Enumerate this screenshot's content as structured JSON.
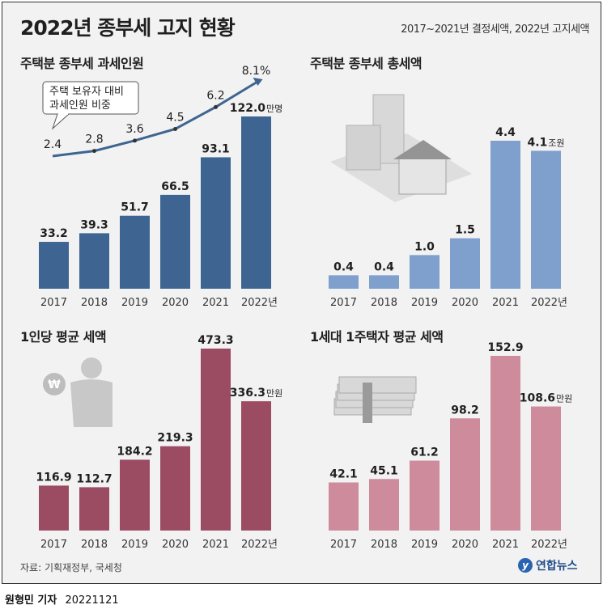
{
  "title": "2022년 종부세 고지 현황",
  "subtitle": "2017~2021년 결정세액, 2022년 고지세액",
  "source": "자료: 기획재정부, 국세청",
  "logo": "연합뉴스",
  "logo_mark": "y",
  "byline": {
    "name": "원형민 기자",
    "date": "20221121"
  },
  "colors": {
    "blue_dark": "#3e6591",
    "blue_light": "#7f9fcc",
    "wine": "#9b4c63",
    "pink": "#cd8b9c",
    "line": "#3e6591"
  },
  "chart_data": [
    {
      "type": "bar",
      "title": "주택분 종부세 과세인원",
      "categories": [
        "2017",
        "2018",
        "2019",
        "2020",
        "2021",
        "2022년"
      ],
      "values": [
        33.2,
        39.3,
        51.7,
        66.5,
        93.1,
        122.0
      ],
      "value_labels": [
        "33.2",
        "39.3",
        "51.7",
        "66.5",
        "93.1",
        "122.0"
      ],
      "unit": "만명",
      "ylim": [
        0,
        122
      ],
      "overlay_line": {
        "label": "주택 보유자 대비\n과세인원 비중",
        "values": [
          2.4,
          2.8,
          3.6,
          4.5,
          6.2,
          8.1
        ],
        "value_labels": [
          "2.4",
          "2.8",
          "3.6",
          "4.5",
          "6.2",
          "8.1%"
        ]
      }
    },
    {
      "type": "bar",
      "title": "주택분 종부세 총세액",
      "categories": [
        "2017",
        "2018",
        "2019",
        "2020",
        "2021",
        "2022년"
      ],
      "values": [
        0.4,
        0.4,
        1.0,
        1.5,
        4.4,
        4.1
      ],
      "value_labels": [
        "0.4",
        "0.4",
        "1.0",
        "1.5",
        "4.4",
        "4.1"
      ],
      "unit": "조원",
      "ylim": [
        0,
        4.4
      ]
    },
    {
      "type": "bar",
      "title": "1인당 평균 세액",
      "categories": [
        "2017",
        "2018",
        "2019",
        "2020",
        "2021",
        "2022년"
      ],
      "values": [
        116.9,
        112.7,
        184.2,
        219.3,
        473.3,
        336.3
      ],
      "value_labels": [
        "116.9",
        "112.7",
        "184.2",
        "219.3",
        "473.3",
        "336.3"
      ],
      "unit": "만원",
      "ylim": [
        0,
        473.3
      ]
    },
    {
      "type": "bar",
      "title": "1세대 1주택자 평균 세액",
      "categories": [
        "2017",
        "2018",
        "2019",
        "2020",
        "2021",
        "2022년"
      ],
      "values": [
        42.1,
        45.1,
        61.2,
        98.2,
        152.9,
        108.6
      ],
      "value_labels": [
        "42.1",
        "45.1",
        "61.2",
        "98.2",
        "152.9",
        "108.6"
      ],
      "unit": "만원",
      "ylim": [
        0,
        152.9
      ]
    }
  ]
}
